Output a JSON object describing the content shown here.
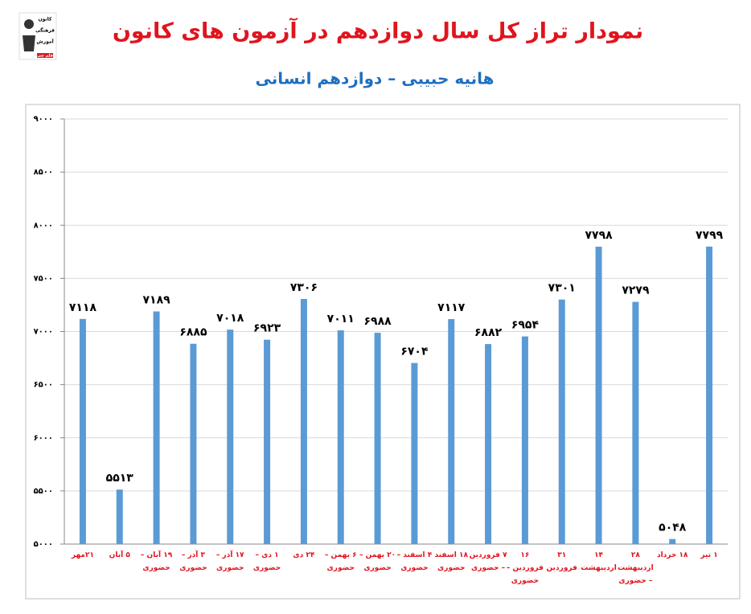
{
  "chart_data": {
    "type": "bar",
    "title": "نمودار تراز کل سال دوازدهم در آزمون های کانون",
    "subtitle": "هانیه حبیبی – دوازدهم انسانی",
    "logo_text": [
      "کانون",
      "فرهنگی",
      "آموزش",
      "قلم چی"
    ],
    "categories": [
      "۲۱مهر",
      "۵ آبان",
      "۱۹ آبان – حضوری",
      "۳ آذر – حضوری",
      "۱۷ آذر – حضوری",
      "۱ دی – حضوری",
      "۲۴ دی",
      "۶ بهمن – حضوری",
      "۲۰ بهمن – حضوری",
      "۴ اسفند – حضوری",
      "۱۸ اسفند حضوری",
      "۷ فروردین – حضوری",
      "۱۶ فروردین – حضوری",
      "۳۱ فروردین",
      "۱۴ اردیبهشت",
      "۲۸ اردیبهشت – حضوری",
      "۱۸ خرداد",
      "۱ تیر"
    ],
    "values": [
      7118,
      5513,
      7189,
      6885,
      7018,
      6923,
      7306,
      7011,
      6988,
      6704,
      7117,
      6882,
      6954,
      7301,
      7798,
      7279,
      5048,
      7799
    ],
    "value_labels": [
      "۷۱۱۸",
      "۵۵۱۳",
      "۷۱۸۹",
      "۶۸۸۵",
      "۷۰۱۸",
      "۶۹۲۳",
      "۷۳۰۶",
      "۷۰۱۱",
      "۶۹۸۸",
      "۶۷۰۴",
      "۷۱۱۷",
      "۶۸۸۲",
      "۶۹۵۴",
      "۷۳۰۱",
      "۷۷۹۸",
      "۷۲۷۹",
      "۵۰۴۸",
      "۷۷۹۹"
    ],
    "color": "#5b9bd5",
    "ylim": [
      5000,
      9000
    ],
    "yticks": [
      {
        "value": 5000,
        "label": "۵۰۰۰"
      },
      {
        "value": 5500,
        "label": "۵۵۰۰"
      },
      {
        "value": 6000,
        "label": "۶۰۰۰"
      },
      {
        "value": 6500,
        "label": "۶۵۰۰"
      },
      {
        "value": 7000,
        "label": "۷۰۰۰"
      },
      {
        "value": 7500,
        "label": "۷۵۰۰"
      },
      {
        "value": 8000,
        "label": "۸۰۰۰"
      },
      {
        "value": 8500,
        "label": "۸۵۰۰"
      },
      {
        "value": 9000,
        "label": "۹۰۰۰"
      }
    ],
    "grid": true
  }
}
